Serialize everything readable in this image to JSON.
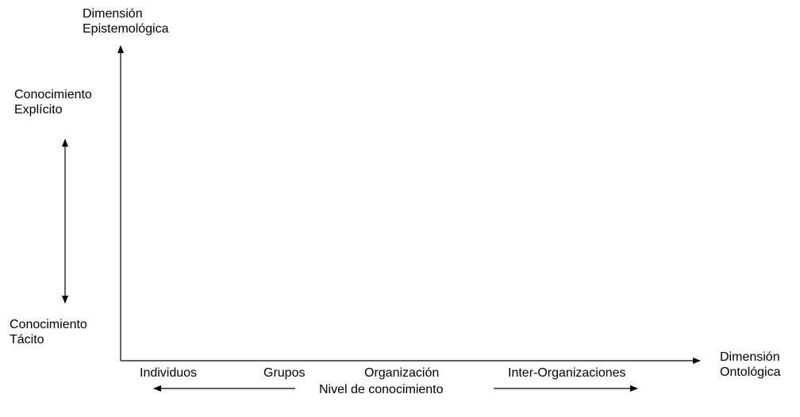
{
  "vertical_axis": {
    "title_line1": "Dimensión",
    "title_line2": "Epistemológica",
    "top_label_line1": "Conocimiento",
    "top_label_line2": "Explícito",
    "bottom_label_line1": "Conocimiento",
    "bottom_label_line2": "Tácito"
  },
  "horizontal_axis": {
    "title_line1": "Dimensión",
    "title_line2": "Ontológica",
    "categories": [
      "Individuos",
      "Grupos",
      "Organización",
      "Inter-Organizaciones"
    ]
  },
  "level_label": "Nivel de conocimiento"
}
